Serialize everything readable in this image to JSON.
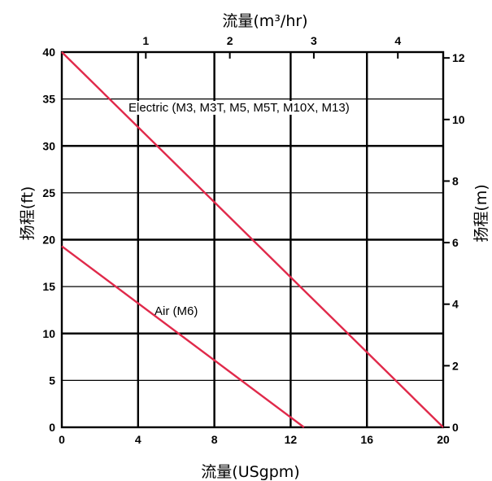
{
  "chart_data": {
    "type": "line",
    "xlabel": "流量(USgpm)",
    "ylabel": "扬程(ft)",
    "x2label": "流量(m³/hr)",
    "y2label": "扬程(m)",
    "xlim": [
      0,
      20
    ],
    "ylim": [
      0,
      40
    ],
    "x2lim": [
      0,
      4.54
    ],
    "y2lim": [
      0,
      12.19
    ],
    "x_ticks": [
      0,
      4,
      8,
      12,
      16,
      20
    ],
    "y_ticks": [
      0,
      5,
      10,
      15,
      20,
      25,
      30,
      35,
      40
    ],
    "x2_ticks": [
      1,
      2,
      3,
      4
    ],
    "y2_ticks": [
      0,
      2,
      4,
      6,
      8,
      10,
      12
    ],
    "grid": true,
    "line_color": "#e0294a",
    "series": [
      {
        "name": "Electric (M3, M3T, M5, M5T, M10X, M13)",
        "x": [
          0,
          20
        ],
        "y": [
          40,
          0
        ]
      },
      {
        "name": "Air (M6)",
        "x": [
          0,
          12.7
        ],
        "y": [
          19.3,
          0
        ]
      }
    ]
  }
}
